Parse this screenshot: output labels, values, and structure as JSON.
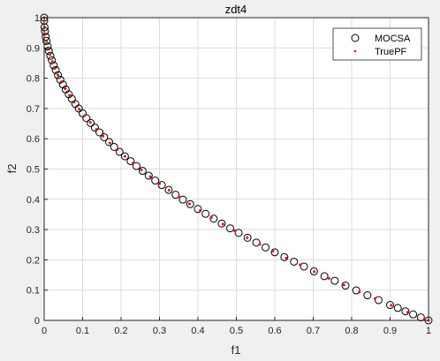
{
  "chart_data": {
    "type": "scatter",
    "title": "zdt4",
    "xlabel": "f1",
    "ylabel": "f2",
    "xlim": [
      0,
      1
    ],
    "ylim": [
      0,
      1
    ],
    "xticks": [
      "0",
      "0.1",
      "0.2",
      "0.3",
      "0.4",
      "0.5",
      "0.6",
      "0.7",
      "0.8",
      "0.9",
      "1"
    ],
    "yticks": [
      "0",
      "0.1",
      "0.2",
      "0.3",
      "0.4",
      "0.5",
      "0.6",
      "0.7",
      "0.8",
      "0.9",
      "1"
    ],
    "grid": true,
    "legend_position": "top-right",
    "series": [
      {
        "name": "MOCSA",
        "marker": "open-circle",
        "color": "#000000",
        "x": [
          0.0,
          0.0,
          0.001,
          0.002,
          0.004,
          0.006,
          0.009,
          0.012,
          0.016,
          0.02,
          0.025,
          0.03,
          0.036,
          0.042,
          0.049,
          0.056,
          0.064,
          0.072,
          0.081,
          0.09,
          0.1,
          0.11,
          0.121,
          0.132,
          0.144,
          0.156,
          0.169,
          0.182,
          0.196,
          0.21,
          0.225,
          0.24,
          0.256,
          0.272,
          0.289,
          0.306,
          0.324,
          0.342,
          0.361,
          0.38,
          0.4,
          0.42,
          0.441,
          0.462,
          0.484,
          0.506,
          0.529,
          0.552,
          0.576,
          0.6,
          0.625,
          0.65,
          0.676,
          0.702,
          0.729,
          0.756,
          0.784,
          0.812,
          0.841,
          0.87,
          0.9,
          0.92,
          0.94,
          0.96,
          0.98,
          1.0
        ],
        "y": [
          1.0,
          0.99,
          0.968,
          0.955,
          0.937,
          0.923,
          0.905,
          0.89,
          0.874,
          0.859,
          0.842,
          0.827,
          0.81,
          0.795,
          0.779,
          0.763,
          0.747,
          0.732,
          0.715,
          0.7,
          0.684,
          0.668,
          0.652,
          0.637,
          0.621,
          0.605,
          0.589,
          0.573,
          0.557,
          0.542,
          0.526,
          0.51,
          0.494,
          0.478,
          0.462,
          0.447,
          0.431,
          0.415,
          0.399,
          0.384,
          0.368,
          0.352,
          0.336,
          0.32,
          0.304,
          0.289,
          0.273,
          0.257,
          0.241,
          0.225,
          0.209,
          0.194,
          0.178,
          0.162,
          0.146,
          0.131,
          0.115,
          0.099,
          0.083,
          0.067,
          0.051,
          0.041,
          0.03,
          0.02,
          0.01,
          0.0
        ]
      },
      {
        "name": "TruePF",
        "marker": "dot",
        "color": "#ff0000",
        "x": [
          0.0,
          0.001,
          0.003,
          0.006,
          0.01,
          0.015,
          0.021,
          0.028,
          0.036,
          0.045,
          0.055,
          0.066,
          0.078,
          0.091,
          0.105,
          0.12,
          0.136,
          0.153,
          0.171,
          0.19,
          0.21,
          0.231,
          0.253,
          0.276,
          0.3,
          0.325,
          0.351,
          0.378,
          0.406,
          0.435,
          0.465,
          0.496,
          0.528,
          0.561,
          0.595,
          0.63,
          0.666,
          0.703,
          0.741,
          0.78,
          0.82,
          0.861,
          0.903,
          0.946,
          0.99,
          1.0
        ],
        "y": [
          1.0,
          0.968,
          0.945,
          0.923,
          0.9,
          0.878,
          0.855,
          0.833,
          0.81,
          0.788,
          0.765,
          0.743,
          0.721,
          0.698,
          0.676,
          0.654,
          0.631,
          0.609,
          0.586,
          0.564,
          0.542,
          0.519,
          0.497,
          0.475,
          0.452,
          0.43,
          0.408,
          0.385,
          0.363,
          0.34,
          0.318,
          0.296,
          0.273,
          0.251,
          0.229,
          0.206,
          0.184,
          0.161,
          0.139,
          0.117,
          0.094,
          0.072,
          0.05,
          0.027,
          0.005,
          0.0
        ]
      }
    ]
  }
}
